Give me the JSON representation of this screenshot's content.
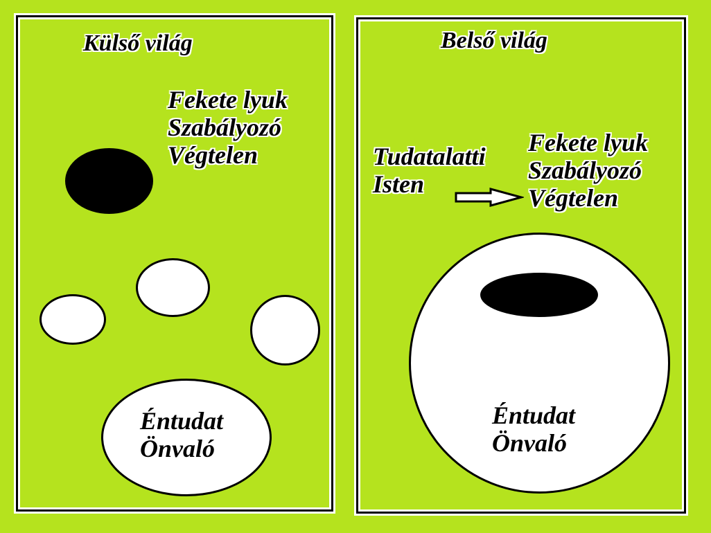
{
  "outer_world": {
    "title": "Külső világ",
    "black_hole_labels": [
      "Fekete  lyuk",
      "Szabályozó",
      "Végtelen"
    ],
    "self_labels": [
      "Éntudat",
      "Önvaló"
    ]
  },
  "inner_world": {
    "title": "Belső világ",
    "source_labels": [
      "Tudatalatti",
      "Isten"
    ],
    "black_hole_labels": [
      "Fekete  lyuk",
      "Szabályozó",
      "Végtelen"
    ],
    "self_labels": [
      "Éntudat",
      "Önvaló"
    ]
  },
  "colors": {
    "background": "#b5e31e",
    "stroke": "#000000",
    "fill": "#ffffff"
  },
  "icons": {
    "arrow": "right-arrow-icon"
  }
}
